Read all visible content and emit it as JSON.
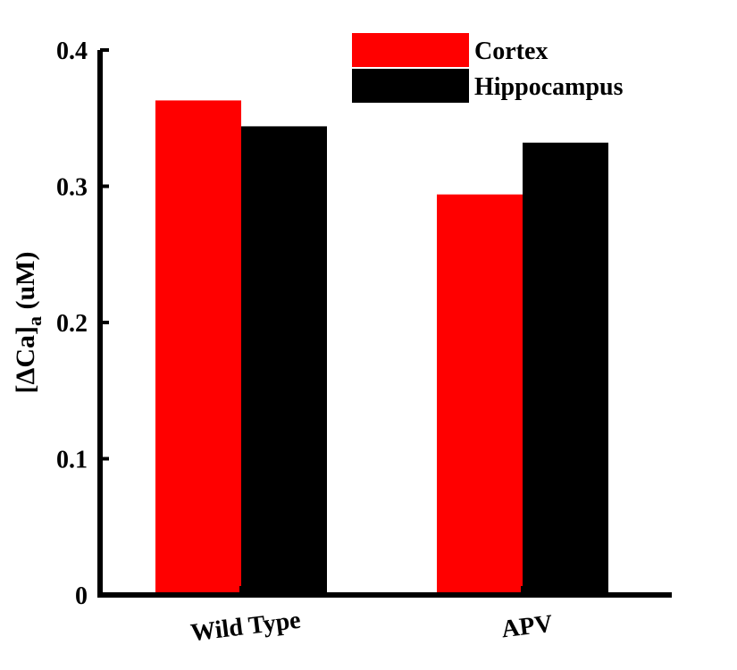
{
  "chart_data": {
    "type": "bar",
    "categories": [
      "Wild Type",
      "APV"
    ],
    "series": [
      {
        "name": "Cortex",
        "color": "#ff0000",
        "values": [
          0.363,
          0.294
        ]
      },
      {
        "name": "Hippocampus",
        "color": "#000000",
        "values": [
          0.344,
          0.332
        ]
      }
    ],
    "ylabel": {
      "prefix": "[ΔCa]",
      "subscript": "a",
      "suffix": " (uM)"
    },
    "ylim": [
      0,
      0.4
    ],
    "yticks": [
      {
        "value": 0,
        "label": "0"
      },
      {
        "value": 0.1,
        "label": "0.1"
      },
      {
        "value": 0.2,
        "label": "0.2"
      },
      {
        "value": 0.3,
        "label": "0.3"
      },
      {
        "value": 0.4,
        "label": "0.4"
      }
    ],
    "grid": false,
    "legend": "top-right"
  }
}
